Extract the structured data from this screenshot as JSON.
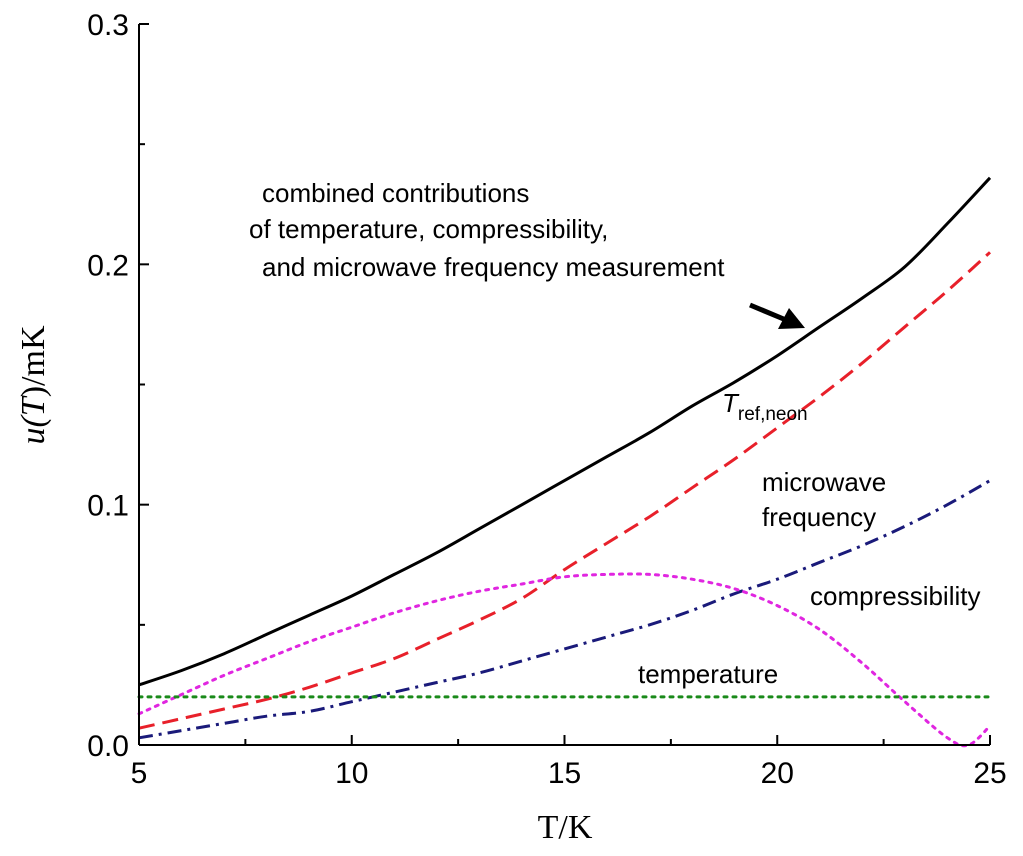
{
  "chart_data": {
    "type": "line",
    "xlabel": "T/K",
    "ylabel_parts": {
      "prefix": "u(",
      "var": "T",
      "suffix": ")/mK"
    },
    "xlim": [
      5,
      25
    ],
    "ylim": [
      0.0,
      0.3
    ],
    "x_ticks": [
      5,
      10,
      15,
      20,
      25
    ],
    "x_tick_labels": [
      "5",
      "10",
      "15",
      "20",
      "25"
    ],
    "y_ticks": [
      0.0,
      0.1,
      0.2,
      0.3
    ],
    "y_tick_labels": [
      "0.0",
      "0.1",
      "0.2",
      "0.3"
    ],
    "grid": false,
    "series": [
      {
        "key": "combined",
        "style": "solid",
        "color": "#000000",
        "x": [
          5,
          6,
          7,
          8,
          9,
          10,
          11,
          12,
          13,
          14,
          15,
          16,
          17,
          18,
          19,
          20,
          21,
          22,
          23,
          24,
          25
        ],
        "y": [
          0.025,
          0.031,
          0.038,
          0.046,
          0.054,
          0.062,
          0.071,
          0.08,
          0.09,
          0.1,
          0.11,
          0.12,
          0.13,
          0.141,
          0.151,
          0.162,
          0.174,
          0.186,
          0.199,
          0.217,
          0.236
        ]
      },
      {
        "key": "tref_neon",
        "style": "dashed",
        "color": "#e8202a",
        "x": [
          5,
          6,
          7,
          8,
          9,
          10,
          11,
          12,
          13,
          14,
          15,
          16,
          17,
          18,
          19,
          20,
          21,
          22,
          23,
          24,
          25
        ],
        "y": [
          0.007,
          0.011,
          0.015,
          0.019,
          0.024,
          0.03,
          0.036,
          0.044,
          0.052,
          0.061,
          0.073,
          0.084,
          0.095,
          0.107,
          0.119,
          0.132,
          0.145,
          0.159,
          0.174,
          0.189,
          0.205
        ]
      },
      {
        "key": "microwave",
        "style": "dashdot",
        "color": "#1a1a7a",
        "x": [
          5,
          6,
          7,
          8,
          9,
          10,
          11,
          12,
          13,
          14,
          15,
          16,
          17,
          18,
          19,
          20,
          21,
          22,
          23,
          24,
          25
        ],
        "y": [
          0.003,
          0.006,
          0.009,
          0.012,
          0.014,
          0.018,
          0.022,
          0.026,
          0.03,
          0.035,
          0.04,
          0.045,
          0.05,
          0.056,
          0.063,
          0.069,
          0.076,
          0.083,
          0.091,
          0.1,
          0.11
        ]
      },
      {
        "key": "compressibility",
        "style": "dotted",
        "color": "#e026e0",
        "x": [
          5,
          6,
          7,
          8,
          9,
          10,
          11,
          12,
          13,
          14,
          15,
          16,
          17,
          18,
          19,
          20,
          21,
          22,
          23,
          24,
          24.5,
          25
        ],
        "y": [
          0.013,
          0.021,
          0.029,
          0.036,
          0.043,
          0.049,
          0.055,
          0.06,
          0.064,
          0.067,
          0.07,
          0.071,
          0.071,
          0.069,
          0.065,
          0.058,
          0.048,
          0.034,
          0.018,
          0.003,
          0.0,
          0.008
        ]
      },
      {
        "key": "temperature",
        "style": "dotted",
        "color": "#1a8a1a",
        "x": [
          5,
          25
        ],
        "y": [
          0.02,
          0.02
        ]
      }
    ],
    "annotations": {
      "combined_line1": "combined contributions",
      "combined_line2": "of temperature, compressibility,",
      "combined_line3": "and microwave frequency measurement",
      "tref_main": "T",
      "tref_sub": "ref,neon",
      "microwave_line1": "microwave",
      "microwave_line2": "frequency",
      "compressibility": "compressibility",
      "temperature": "temperature"
    }
  }
}
